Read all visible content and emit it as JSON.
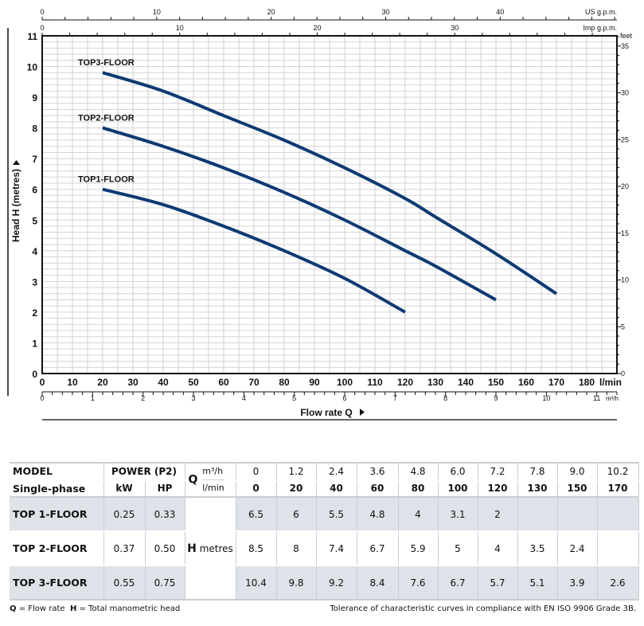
{
  "chart_data": {
    "type": "line",
    "xlabel": "Flow rate Q",
    "ylabel": "Head H  (metres)",
    "x_unit": "l/min",
    "xlim": [
      0,
      190
    ],
    "ylim": [
      0,
      11
    ],
    "grid": true,
    "x_ticks": [
      0,
      10,
      20,
      30,
      40,
      50,
      60,
      70,
      80,
      90,
      100,
      110,
      120,
      130,
      140,
      150,
      160,
      170,
      180
    ],
    "y_ticks": [
      0,
      1,
      2,
      3,
      4,
      5,
      6,
      7,
      8,
      9,
      10,
      11
    ],
    "secondary_axes": {
      "us_gpm": {
        "label": "US g.p.m.",
        "ticks": [
          0,
          10,
          20,
          30,
          40
        ]
      },
      "imp_gpm": {
        "label": "Imp g.p.m.",
        "ticks": [
          0,
          10,
          20,
          30
        ]
      },
      "feet": {
        "label": "feet",
        "ticks": [
          0,
          5,
          10,
          15,
          20,
          25,
          30,
          35
        ]
      },
      "m3h": {
        "label": "m³/h",
        "ticks": [
          0,
          1,
          2,
          3,
          4,
          5,
          6,
          7,
          8,
          9,
          10,
          11
        ]
      }
    },
    "series": [
      {
        "name": "TOP1-FLOOR",
        "x": [
          20,
          40,
          60,
          80,
          100,
          120
        ],
        "y": [
          6,
          5.5,
          4.8,
          4,
          3.1,
          2
        ]
      },
      {
        "name": "TOP2-FLOOR",
        "x": [
          20,
          40,
          60,
          80,
          100,
          120,
          130,
          150
        ],
        "y": [
          8,
          7.4,
          6.7,
          5.9,
          5,
          4,
          3.5,
          2.4
        ]
      },
      {
        "name": "TOP3-FLOOR",
        "x": [
          20,
          40,
          60,
          80,
          100,
          120,
          130,
          150,
          170
        ],
        "y": [
          9.8,
          9.2,
          8.4,
          7.6,
          6.7,
          5.7,
          5.1,
          3.9,
          2.6
        ]
      }
    ],
    "line_color": "#0d3a73"
  },
  "table": {
    "model_label": "MODEL",
    "phase_label": "Single-phase",
    "power_label": "POWER (P2)",
    "kw_label": "kW",
    "hp_label": "HP",
    "q_label": "Q",
    "m3h_label": "m³/h",
    "lmin_label": "l/min",
    "h_label": "H",
    "h_unit": "metres",
    "m3h": [
      "0",
      "1.2",
      "2.4",
      "3.6",
      "4.8",
      "6.0",
      "7.2",
      "7.8",
      "9.0",
      "10.2"
    ],
    "lmin": [
      "0",
      "20",
      "40",
      "60",
      "80",
      "100",
      "120",
      "130",
      "150",
      "170"
    ],
    "rows": [
      {
        "model": "TOP 1-FLOOR",
        "kw": "0.25",
        "hp": "0.33",
        "h": [
          "6.5",
          "6",
          "5.5",
          "4.8",
          "4",
          "3.1",
          "2",
          "",
          "",
          ""
        ]
      },
      {
        "model": "TOP 2-FLOOR",
        "kw": "0.37",
        "hp": "0.50",
        "h": [
          "8.5",
          "8",
          "7.4",
          "6.7",
          "5.9",
          "5",
          "4",
          "3.5",
          "2.4",
          ""
        ]
      },
      {
        "model": "TOP 3-FLOOR",
        "kw": "0.55",
        "hp": "0.75",
        "h": [
          "10.4",
          "9.8",
          "9.2",
          "8.4",
          "7.6",
          "6.7",
          "5.7",
          "5.1",
          "3.9",
          "2.6"
        ]
      }
    ],
    "shade_color": "#dde3e8"
  },
  "footer": {
    "legend_q": "Q",
    "legend_q_text": " = Flow rate  ",
    "legend_h": "H",
    "legend_h_text": " = Total manometric head",
    "tolerance": "Tolerance of characteristic curves in compliance with EN ISO 9906 Grade 3B."
  }
}
